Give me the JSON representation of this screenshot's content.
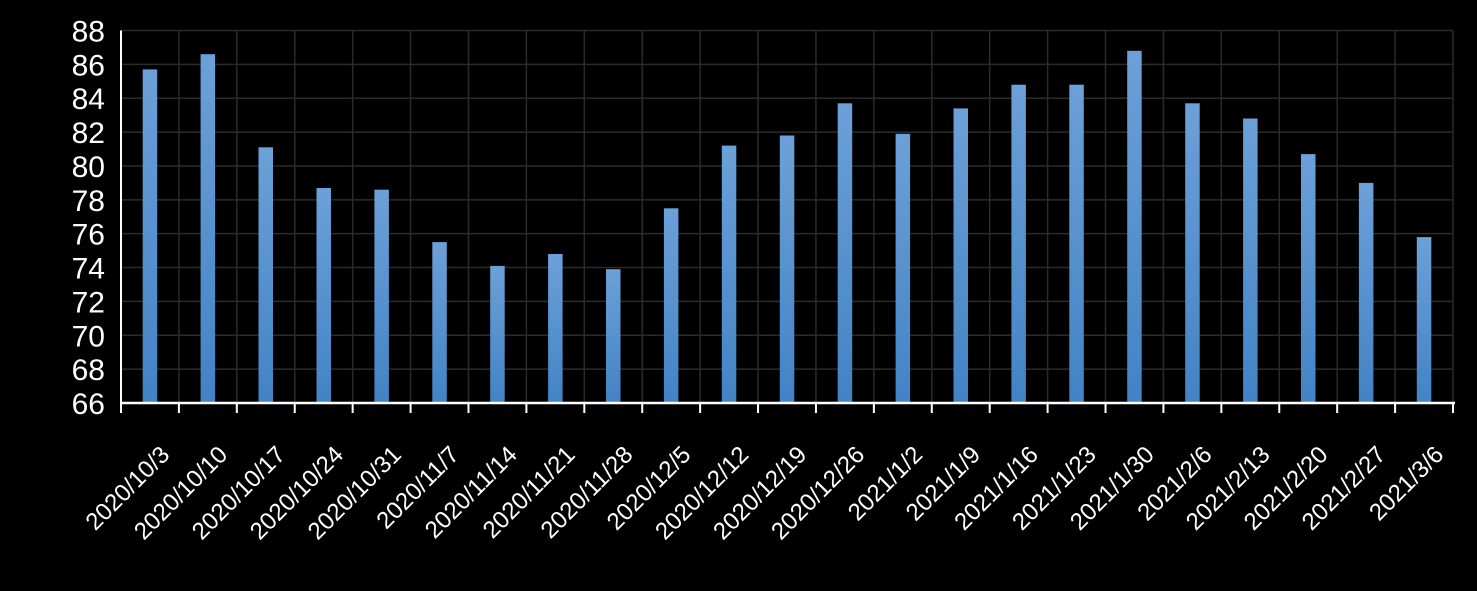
{
  "chart_data": {
    "type": "bar",
    "title": "",
    "xlabel": "",
    "ylabel": "",
    "legend_position": "none",
    "grid": true,
    "ylim": [
      66,
      88
    ],
    "ytick_step": 2,
    "y_tick_labels": [
      "88",
      "86",
      "84",
      "82",
      "80",
      "78",
      "76",
      "74",
      "72",
      "70",
      "68",
      "66"
    ],
    "categories": [
      "2020/10/3",
      "2020/10/10",
      "2020/10/17",
      "2020/10/24",
      "2020/10/31",
      "2020/11/7",
      "2020/11/14",
      "2020/11/21",
      "2020/11/28",
      "2020/12/5",
      "2020/12/12",
      "2020/12/19",
      "2020/12/26",
      "2021/1/2",
      "2021/1/9",
      "2021/1/16",
      "2021/1/23",
      "2021/1/30",
      "2021/2/6",
      "2021/2/13",
      "2021/2/20",
      "2021/2/27",
      "2021/3/6"
    ],
    "values": [
      85.7,
      86.6,
      81.1,
      78.7,
      78.6,
      75.5,
      74.1,
      74.8,
      73.9,
      77.5,
      81.2,
      81.8,
      83.7,
      81.9,
      83.4,
      84.8,
      84.8,
      86.8,
      83.7,
      82.8,
      80.7,
      79.0,
      75.8
    ],
    "colors": {
      "background": "#000000",
      "bar_gradient_top": "#6CA0D8",
      "bar_gradient_bottom": "#4283C5",
      "gridline": "#2b2b2b",
      "axis_line": "#ffffff",
      "label_text": "#ffffff"
    }
  }
}
